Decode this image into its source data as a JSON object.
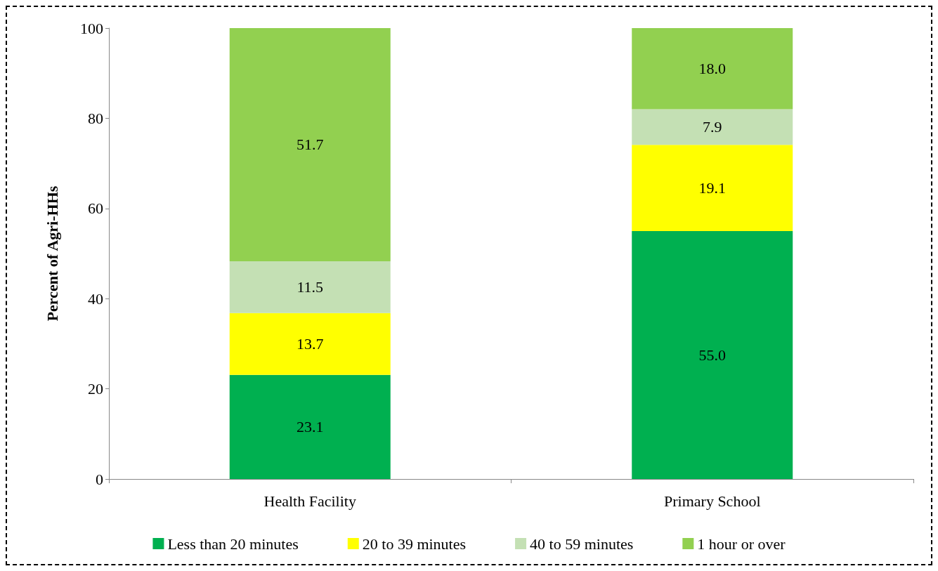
{
  "chart_data": {
    "type": "bar",
    "stacked": true,
    "ylabel": "Percent of Agri-HHs",
    "categories": [
      "Health Facility",
      "Primary School"
    ],
    "series": [
      {
        "name": "Less than 20 minutes",
        "color": "#00b050",
        "values": [
          23.1,
          55.0
        ],
        "value_labels": [
          "23.1",
          "55.0"
        ]
      },
      {
        "name": "20 to 39 minutes",
        "color": "#ffff00",
        "values": [
          13.7,
          19.1
        ],
        "value_labels": [
          "13.7",
          "19.1"
        ]
      },
      {
        "name": "40 to 59 minutes",
        "color": "#c4e0b4",
        "values": [
          11.5,
          7.9
        ],
        "value_labels": [
          "11.5",
          "7.9"
        ]
      },
      {
        "name": "1 hour or over",
        "color": "#92d050",
        "values": [
          51.7,
          18.0
        ],
        "value_labels": [
          "51.7",
          "18.0"
        ]
      }
    ],
    "ylim": [
      0,
      100
    ],
    "yticks": [
      0,
      20,
      40,
      60,
      80,
      100
    ],
    "grid": false,
    "legend": "bottom"
  }
}
